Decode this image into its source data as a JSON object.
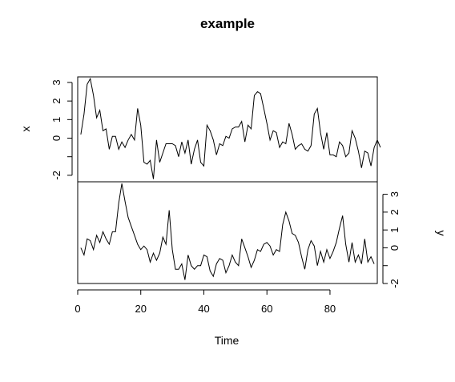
{
  "chart_data": {
    "type": "line",
    "title": "example",
    "xlabel": "Time",
    "xlim": [
      0,
      95
    ],
    "x_ticks": [
      0,
      20,
      40,
      60,
      80
    ],
    "x_tick_labels": [
      "0",
      "20",
      "40",
      "60",
      "80"
    ],
    "panels": [
      {
        "name": "x",
        "ylabel": "x",
        "ylim": [
          -2.35,
          3.3
        ],
        "y_ticks": [
          -2,
          -1,
          0,
          1,
          2,
          3
        ],
        "y_tick_labels": [
          "-2",
          "",
          "0",
          "1",
          "2",
          "3"
        ],
        "axis_side": "left",
        "series": [
          {
            "name": "x",
            "values": [
              0.2,
              1.3,
              2.9,
              3.2,
              2.3,
              1.1,
              1.5,
              0.4,
              0.5,
              -0.6,
              0.1,
              0.1,
              -0.6,
              -0.2,
              -0.5,
              -0.1,
              0.2,
              -0.1,
              1.6,
              0.7,
              -1.3,
              -1.4,
              -1.2,
              -2.2,
              -0.1,
              -1.3,
              -0.8,
              -0.3,
              -0.3,
              -0.3,
              -0.4,
              -1.0,
              -0.2,
              -0.8,
              -0.1,
              -1.4,
              -0.6,
              -0.1,
              -1.3,
              -1.5,
              0.7,
              0.4,
              -0.1,
              -0.9,
              -0.3,
              -0.4,
              0.1,
              0.0,
              0.5,
              0.6,
              0.6,
              0.9,
              -0.2,
              0.7,
              0.5,
              2.3,
              2.5,
              2.4,
              1.6,
              0.8,
              -0.1,
              0.4,
              0.3,
              -0.5,
              -0.2,
              -0.3,
              0.8,
              0.2,
              -0.6,
              -0.4,
              -0.3,
              -0.6,
              -0.7,
              -0.4,
              1.3,
              1.6,
              0.3,
              -0.6,
              0.3,
              -0.9,
              -0.9,
              -1.0,
              -0.2,
              -0.4,
              -1.0,
              -0.8,
              0.4,
              0.0,
              -0.7,
              -1.6,
              -0.7,
              -0.8,
              -1.5,
              -0.5,
              -0.1,
              -0.5
            ]
          }
        ]
      },
      {
        "name": "y",
        "ylabel": "y",
        "ylim": [
          -2.0,
          3.7
        ],
        "y_ticks": [
          -2,
          -1,
          0,
          1,
          2,
          3
        ],
        "y_tick_labels": [
          "-2",
          "",
          "0",
          "1",
          "2",
          "3"
        ],
        "axis_side": "right",
        "series": [
          {
            "name": "y",
            "values": [
              0.0,
              -0.4,
              0.5,
              0.4,
              -0.1,
              0.7,
              0.3,
              0.9,
              0.5,
              0.2,
              0.9,
              0.9,
              2.5,
              3.6,
              2.6,
              1.7,
              1.2,
              0.7,
              0.2,
              -0.1,
              0.1,
              -0.1,
              -0.8,
              -0.3,
              -0.7,
              -0.3,
              0.6,
              0.2,
              2.1,
              -0.1,
              -1.2,
              -1.2,
              -0.9,
              -1.8,
              -0.4,
              -1.0,
              -1.2,
              -1.0,
              -1.0,
              -0.4,
              -0.5,
              -1.3,
              -1.6,
              -0.9,
              -0.6,
              -0.7,
              -1.4,
              -1.0,
              -0.4,
              -0.8,
              -1.0,
              0.5,
              0.0,
              -0.5,
              -1.1,
              -0.7,
              -0.1,
              -0.2,
              0.2,
              0.3,
              0.1,
              -0.4,
              -0.1,
              -0.2,
              1.3,
              2.0,
              1.5,
              0.8,
              0.7,
              0.3,
              -0.5,
              -1.2,
              -0.1,
              0.4,
              0.1,
              -1.0,
              -0.2,
              -0.8,
              -0.1,
              -0.6,
              -0.2,
              0.3,
              1.1,
              1.8,
              0.2,
              -0.8,
              0.3,
              -0.8,
              -0.4,
              -0.9,
              0.5,
              -0.8,
              -0.5,
              -0.9
            ]
          }
        ]
      }
    ]
  }
}
